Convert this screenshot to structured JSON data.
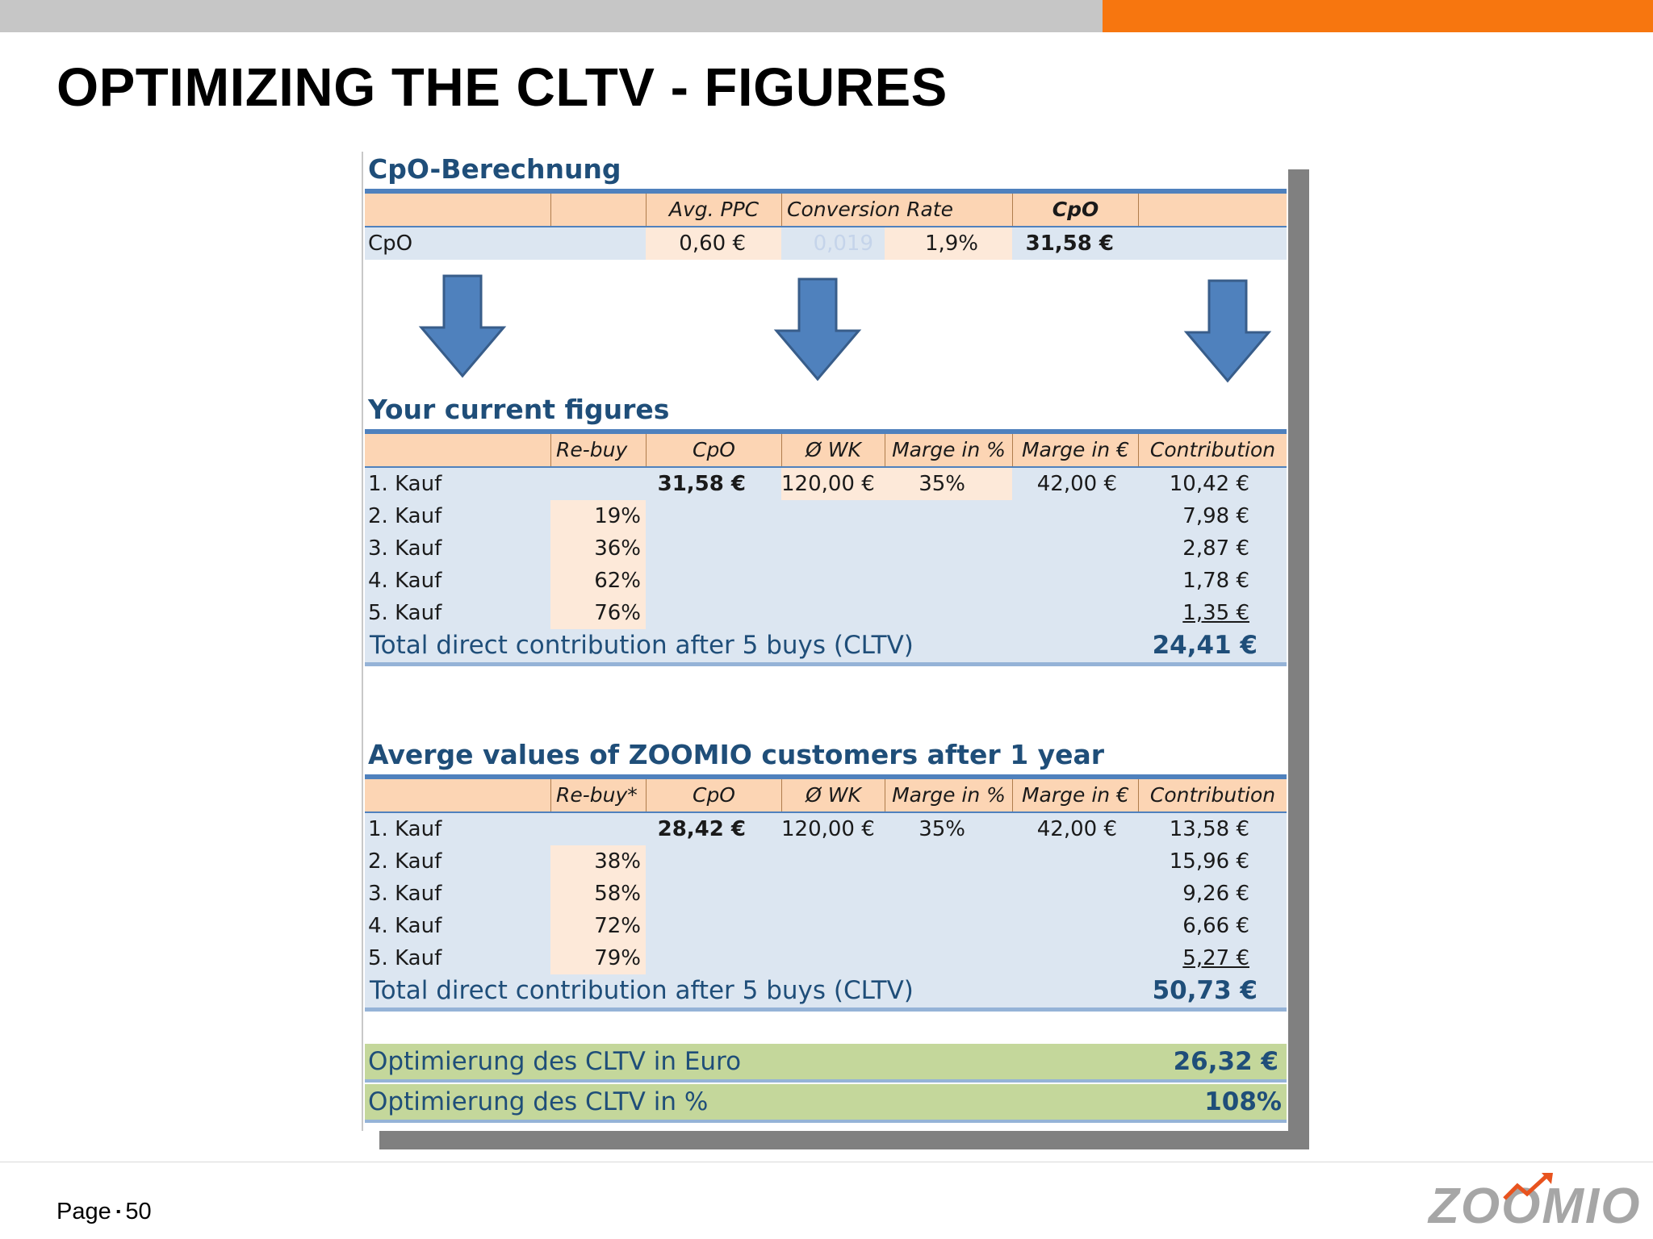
{
  "slide": {
    "title": "OPTIMIZING THE CLTV - FIGURES",
    "page_label": "Page",
    "page_sep": "▪",
    "page_number": "50"
  },
  "logo": {
    "text": "ZOOMIO",
    "icon": "chart-arrow-icon"
  },
  "colors": {
    "orange_bar": "#f7760f",
    "header_fill": "#fcd5b4",
    "body_fill": "#dce6f1",
    "title_blue": "#1f4e79",
    "green_fill": "#c4d79b",
    "arrow_blue": "#4f81bd"
  },
  "cpo": {
    "title": "CpO-Berechnung",
    "headers": [
      "Avg. PPC",
      "Conversion Rate",
      "CpO"
    ],
    "row_label": "CpO",
    "avg_ppc": "0,60 €",
    "hidden_value": "0,019",
    "conversion_rate": "1,9%",
    "cpo": "31,58 €"
  },
  "current": {
    "title": "Your current figures",
    "headers": [
      "Re-buy",
      "CpO",
      "Ø  WK",
      "Marge in %",
      "Marge in €",
      "Contribution"
    ],
    "rows": [
      {
        "label": "1. Kauf",
        "rebuy": "",
        "cpo": "31,58 €",
        "wk": "120,00 €",
        "marge_pct": "35%",
        "marge_eur": "42,00 €",
        "contribution": "10,42 €"
      },
      {
        "label": "2. Kauf",
        "rebuy": "19%",
        "contribution": "7,98 €"
      },
      {
        "label": "3. Kauf",
        "rebuy": "36%",
        "contribution": "2,87 €"
      },
      {
        "label": "4. Kauf",
        "rebuy": "62%",
        "contribution": "1,78 €"
      },
      {
        "label": "5. Kauf",
        "rebuy": "76%",
        "contribution": "1,35 €"
      }
    ],
    "total_label": "Total direct contribution after 5 buys (CLTV)",
    "total_value": "24,41 €"
  },
  "zoomio": {
    "title": "Averge values of ZOOMIO customers after 1 year",
    "headers": [
      "Re-buy*",
      "CpO",
      "Ø  WK",
      "Marge in %",
      "Marge in €",
      "Contribution"
    ],
    "rows": [
      {
        "label": "1. Kauf",
        "rebuy": "",
        "cpo": "28,42 €",
        "wk": "120,00 €",
        "marge_pct": "35%",
        "marge_eur": "42,00 €",
        "contribution": "13,58 €"
      },
      {
        "label": "2. Kauf",
        "rebuy": "38%",
        "contribution": "15,96 €"
      },
      {
        "label": "3. Kauf",
        "rebuy": "58%",
        "contribution": "9,26 €"
      },
      {
        "label": "4. Kauf",
        "rebuy": "72%",
        "contribution": "6,66 €"
      },
      {
        "label": "5. Kauf",
        "rebuy": "79%",
        "contribution": "5,27 €"
      }
    ],
    "total_label": "Total direct contribution after 5 buys (CLTV)",
    "total_value": "50,73 €"
  },
  "optimization": [
    {
      "label": "Optimierung des CLTV in Euro",
      "value": "26,32 €"
    },
    {
      "label": "Optimierung des CLTV in %",
      "value": "108%"
    }
  ]
}
